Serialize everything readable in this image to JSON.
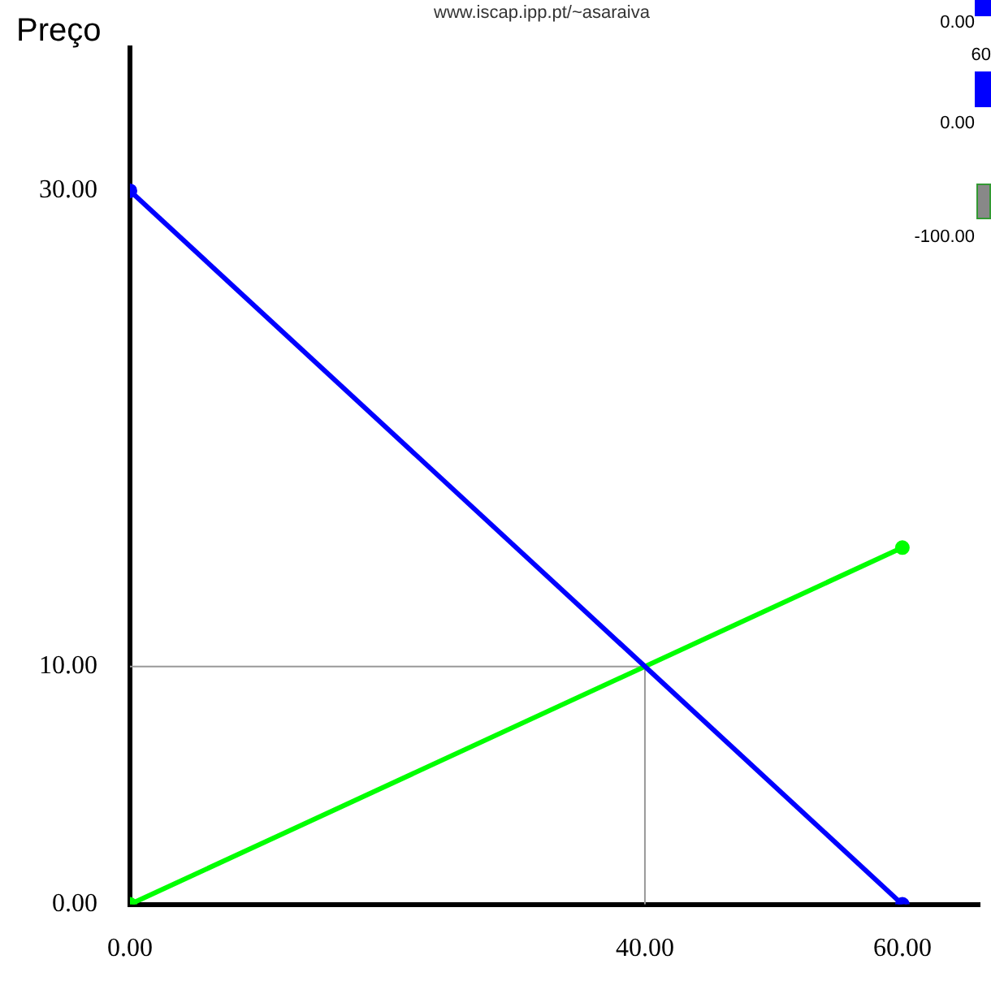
{
  "chart_data": {
    "type": "line",
    "ylabel": "Preço",
    "annotations": [
      "www.iscap.ipp.pt/~asaraiva",
      "0.00",
      "60",
      "0.00",
      "-100.00"
    ],
    "x": [
      0,
      60
    ],
    "series": [
      {
        "color": "#0000ff",
        "values": [
          30,
          0
        ]
      },
      {
        "color": "#00ff00",
        "values": [
          0,
          15
        ]
      }
    ],
    "xlim": [
      0,
      66
    ],
    "ylim": [
      0,
      36
    ],
    "xticks": [
      {
        "value": 0,
        "label": "0.00"
      },
      {
        "value": 40,
        "label": "40.00"
      },
      {
        "value": 60,
        "label": "60.00"
      }
    ],
    "yticks": [
      {
        "value": 0,
        "label": "0.00"
      },
      {
        "value": 10,
        "label": "10.00"
      },
      {
        "value": 30,
        "label": "30.00"
      }
    ],
    "ref_lines": [
      {
        "axis": "x",
        "value": 40,
        "color": "#999999"
      },
      {
        "axis": "y",
        "value": 10,
        "color": "#999999"
      }
    ],
    "grid": false,
    "legend": false,
    "marker": "circle",
    "line_style": "solid"
  }
}
